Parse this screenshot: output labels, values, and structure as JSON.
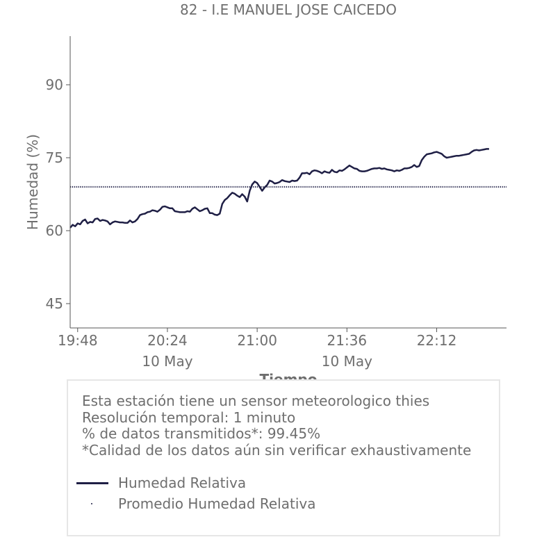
{
  "chart_data": {
    "type": "line",
    "title": "82 - I.E MANUEL JOSE CAICEDO",
    "xlabel": "Tiempo",
    "ylabel": "Humedad (%)",
    "ylim": [
      40,
      100
    ],
    "yticks": [
      45,
      60,
      75,
      90
    ],
    "xlim": [
      "19:45",
      "22:40"
    ],
    "xticks": [
      {
        "time": "19:48",
        "label": "19:48",
        "date": ""
      },
      {
        "time": "20:24",
        "label": "20:24",
        "date": "10 May"
      },
      {
        "time": "21:00",
        "label": "21:00",
        "date": ""
      },
      {
        "time": "21:36",
        "label": "21:36",
        "date": "10 May"
      },
      {
        "time": "22:12",
        "label": "22:12",
        "date": ""
      }
    ],
    "grid": false,
    "series": [
      {
        "name": "Humedad Relativa",
        "color": "#1f1f45",
        "style": "solid",
        "points": [
          [
            "19:45",
            60.6
          ],
          [
            "19:46",
            61.2
          ],
          [
            "19:47",
            60.9
          ],
          [
            "19:48",
            61.5
          ],
          [
            "19:49",
            61.3
          ],
          [
            "19:50",
            62.0
          ],
          [
            "19:51",
            62.3
          ],
          [
            "19:52",
            61.5
          ],
          [
            "19:53",
            61.8
          ],
          [
            "19:54",
            61.7
          ],
          [
            "19:55",
            62.4
          ],
          [
            "19:56",
            62.5
          ],
          [
            "19:57",
            62.0
          ],
          [
            "19:58",
            62.2
          ],
          [
            "19:59",
            62.1
          ],
          [
            "20:00",
            61.9
          ],
          [
            "20:01",
            61.3
          ],
          [
            "20:02",
            61.7
          ],
          [
            "20:03",
            61.9
          ],
          [
            "20:05",
            61.7
          ],
          [
            "20:06",
            61.7
          ],
          [
            "20:07",
            61.6
          ],
          [
            "20:08",
            61.6
          ],
          [
            "20:09",
            62.1
          ],
          [
            "20:10",
            61.7
          ],
          [
            "20:11",
            61.9
          ],
          [
            "20:12",
            62.4
          ],
          [
            "20:13",
            63.2
          ],
          [
            "20:14",
            63.4
          ],
          [
            "20:15",
            63.5
          ],
          [
            "20:16",
            63.8
          ],
          [
            "20:17",
            63.9
          ],
          [
            "20:18",
            64.2
          ],
          [
            "20:19",
            64.1
          ],
          [
            "20:20",
            63.9
          ],
          [
            "20:21",
            64.3
          ],
          [
            "20:22",
            64.9
          ],
          [
            "20:23",
            65.0
          ],
          [
            "20:24",
            64.8
          ],
          [
            "20:25",
            64.6
          ],
          [
            "20:26",
            64.6
          ],
          [
            "20:27",
            64.0
          ],
          [
            "20:28",
            63.9
          ],
          [
            "20:29",
            63.8
          ],
          [
            "20:30",
            63.8
          ],
          [
            "20:31",
            63.8
          ],
          [
            "20:32",
            64.0
          ],
          [
            "20:33",
            63.9
          ],
          [
            "20:34",
            64.5
          ],
          [
            "20:35",
            64.8
          ],
          [
            "20:36",
            64.4
          ],
          [
            "20:37",
            64.0
          ],
          [
            "20:38",
            64.2
          ],
          [
            "20:39",
            64.5
          ],
          [
            "20:40",
            64.6
          ],
          [
            "20:41",
            63.6
          ],
          [
            "20:42",
            63.6
          ],
          [
            "20:43",
            63.3
          ],
          [
            "20:44",
            63.2
          ],
          [
            "20:45",
            63.5
          ],
          [
            "20:46",
            65.5
          ],
          [
            "20:47",
            66.3
          ],
          [
            "20:48",
            66.7
          ],
          [
            "20:49",
            67.3
          ],
          [
            "20:50",
            67.8
          ],
          [
            "20:51",
            67.6
          ],
          [
            "20:52",
            67.2
          ],
          [
            "20:53",
            66.9
          ],
          [
            "20:54",
            67.5
          ],
          [
            "20:55",
            67.0
          ],
          [
            "20:56",
            66.0
          ],
          [
            "20:57",
            68.2
          ],
          [
            "20:58",
            69.5
          ],
          [
            "20:59",
            70.1
          ],
          [
            "21:00",
            69.8
          ],
          [
            "21:01",
            69.0
          ],
          [
            "21:02",
            68.2
          ],
          [
            "21:03",
            68.9
          ],
          [
            "21:04",
            69.4
          ],
          [
            "21:05",
            70.3
          ],
          [
            "21:06",
            70.1
          ],
          [
            "21:07",
            69.7
          ],
          [
            "21:08",
            69.8
          ],
          [
            "21:09",
            70.0
          ],
          [
            "21:10",
            70.4
          ],
          [
            "21:11",
            70.2
          ],
          [
            "21:12",
            70.1
          ],
          [
            "21:13",
            70.0
          ],
          [
            "21:14",
            70.3
          ],
          [
            "21:15",
            70.2
          ],
          [
            "21:16",
            70.3
          ],
          [
            "21:17",
            70.9
          ],
          [
            "21:18",
            71.8
          ],
          [
            "21:19",
            71.8
          ],
          [
            "21:20",
            71.9
          ],
          [
            "21:21",
            71.6
          ],
          [
            "21:22",
            72.2
          ],
          [
            "21:23",
            72.4
          ],
          [
            "21:24",
            72.3
          ],
          [
            "21:25",
            72.1
          ],
          [
            "21:26",
            71.8
          ],
          [
            "21:27",
            72.2
          ],
          [
            "21:28",
            72.0
          ],
          [
            "21:29",
            71.9
          ],
          [
            "21:30",
            72.5
          ],
          [
            "21:31",
            72.1
          ],
          [
            "21:32",
            72.0
          ],
          [
            "21:33",
            72.4
          ],
          [
            "21:34",
            72.3
          ],
          [
            "21:35",
            72.6
          ],
          [
            "21:36",
            73.0
          ],
          [
            "21:37",
            73.4
          ],
          [
            "21:38",
            73.1
          ],
          [
            "21:39",
            72.8
          ],
          [
            "21:40",
            72.7
          ],
          [
            "21:41",
            72.3
          ],
          [
            "21:42",
            72.2
          ],
          [
            "21:43",
            72.2
          ],
          [
            "21:44",
            72.3
          ],
          [
            "21:45",
            72.5
          ],
          [
            "21:46",
            72.7
          ],
          [
            "21:47",
            72.8
          ],
          [
            "21:48",
            72.8
          ],
          [
            "21:49",
            72.9
          ],
          [
            "21:50",
            72.7
          ],
          [
            "21:51",
            72.8
          ],
          [
            "21:52",
            72.6
          ],
          [
            "21:53",
            72.5
          ],
          [
            "21:54",
            72.4
          ],
          [
            "21:55",
            72.2
          ],
          [
            "21:56",
            72.4
          ],
          [
            "21:57",
            72.3
          ],
          [
            "21:58",
            72.5
          ],
          [
            "21:59",
            72.8
          ],
          [
            "22:00",
            72.8
          ],
          [
            "22:01",
            72.9
          ],
          [
            "22:02",
            73.1
          ],
          [
            "22:03",
            73.5
          ],
          [
            "22:04",
            73.1
          ],
          [
            "22:05",
            73.3
          ],
          [
            "22:06",
            74.5
          ],
          [
            "22:07",
            75.2
          ],
          [
            "22:08",
            75.7
          ],
          [
            "22:09",
            75.8
          ],
          [
            "22:10",
            75.9
          ],
          [
            "22:11",
            76.1
          ],
          [
            "22:12",
            76.2
          ],
          [
            "22:13",
            76.0
          ],
          [
            "22:14",
            75.8
          ],
          [
            "22:15",
            75.3
          ],
          [
            "22:16",
            75.0
          ],
          [
            "22:17",
            75.1
          ],
          [
            "22:18",
            75.2
          ],
          [
            "22:19",
            75.3
          ],
          [
            "22:20",
            75.4
          ],
          [
            "22:21",
            75.4
          ],
          [
            "22:22",
            75.5
          ],
          [
            "22:23",
            75.6
          ],
          [
            "22:24",
            75.7
          ],
          [
            "22:25",
            75.8
          ],
          [
            "22:26",
            76.2
          ],
          [
            "22:27",
            76.5
          ],
          [
            "22:28",
            76.6
          ],
          [
            "22:29",
            76.5
          ],
          [
            "22:30",
            76.6
          ],
          [
            "22:31",
            76.7
          ],
          [
            "22:32",
            76.8
          ],
          [
            "22:33",
            76.8
          ]
        ]
      },
      {
        "name": "Promedio Humedad Relativa",
        "color": "#1f1f45",
        "style": "dotted",
        "value": 69.0
      }
    ]
  },
  "info": {
    "lines": [
      "Esta estación tiene un sensor meteorologico thies",
      "Resolución temporal: 1 minuto",
      "% de datos transmitidos*: 99.45%",
      "*Calidad de los datos aún sin verificar exhaustivamente"
    ]
  },
  "legend": {
    "items": [
      {
        "label": "Humedad Relativa"
      },
      {
        "label": "Promedio Humedad Relativa"
      }
    ]
  }
}
